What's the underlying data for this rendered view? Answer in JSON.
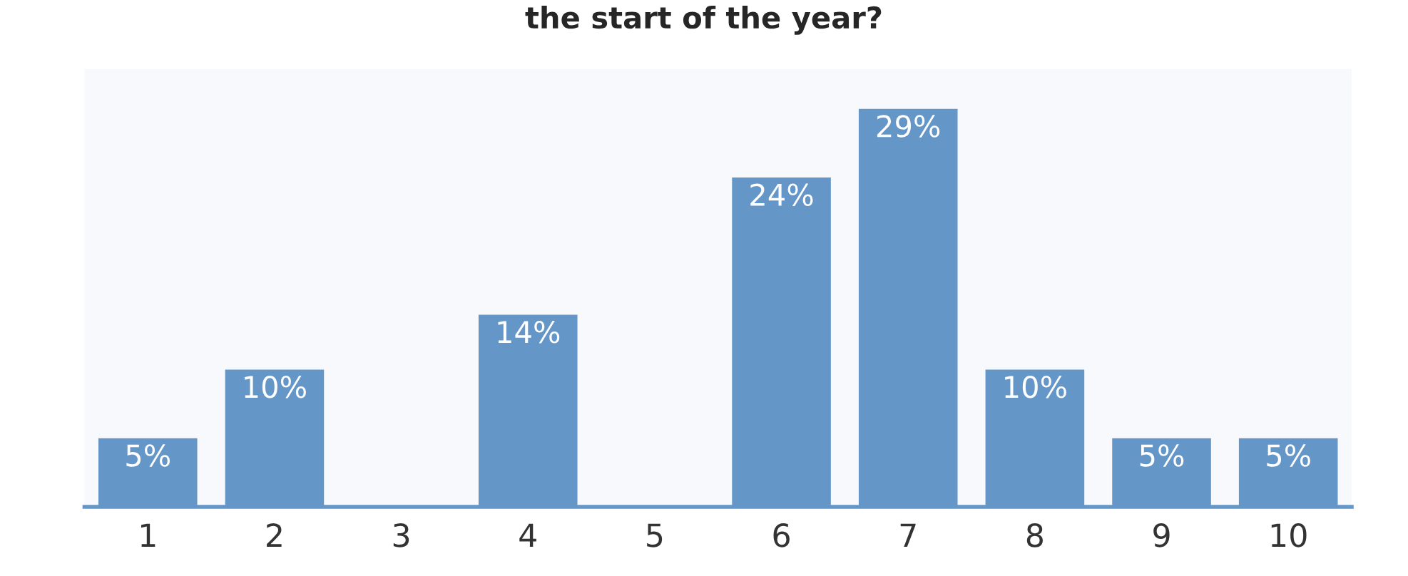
{
  "chart_data": {
    "type": "bar",
    "title": "the start of the year?",
    "categories": [
      "1",
      "2",
      "3",
      "4",
      "5",
      "6",
      "7",
      "8",
      "9",
      "10"
    ],
    "values": [
      5,
      10,
      null,
      14,
      null,
      24,
      29,
      10,
      5,
      5
    ],
    "value_labels": [
      "5%",
      "10%",
      null,
      "14%",
      null,
      "24%",
      "29%",
      "10%",
      "5%",
      "5%"
    ],
    "color": "#6497c8"
  }
}
